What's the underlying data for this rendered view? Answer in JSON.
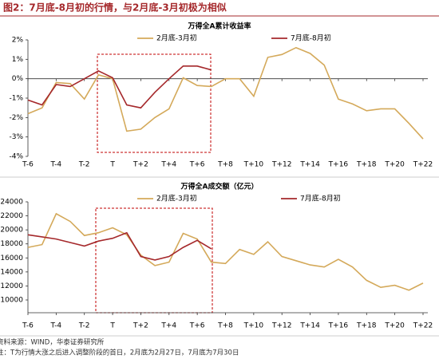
{
  "header": {
    "title": "图2：7月底-8月初的行情，与2月底-3月初极为相似"
  },
  "chart_data": [
    {
      "type": "line",
      "title": "万得全A累计收益率",
      "categories": [
        "T-6",
        null,
        "T-4",
        null,
        "T-2",
        null,
        "T",
        null,
        "T+2",
        null,
        "T+4",
        null,
        "T+6",
        null,
        "T+8",
        null,
        "T+10",
        null,
        "T+12",
        null,
        "T+14",
        null,
        "T+16",
        null,
        "T+18",
        null,
        "T+20",
        null,
        "T+22"
      ],
      "series": [
        {
          "name": "2月底-3月初",
          "color": "#d4a95a",
          "values": [
            -1.8,
            -1.5,
            -0.2,
            -0.25,
            -1.05,
            0.2,
            0.0,
            -2.7,
            -2.6,
            -2.0,
            -1.55,
            0.05,
            -0.35,
            -0.4,
            0.0,
            0.0,
            -0.9,
            1.1,
            1.25,
            1.6,
            1.3,
            0.7,
            -1.05,
            -1.3,
            -1.65,
            -1.55,
            -1.55,
            -2.3,
            -3.1
          ]
        },
        {
          "name": "7月底-8月初",
          "color": "#a5282b",
          "values": [
            -1.1,
            -1.35,
            -0.3,
            -0.4,
            0.0,
            0.4,
            0.05,
            -1.35,
            -1.5,
            -0.7,
            0.0,
            0.65,
            0.65,
            0.45,
            null,
            null,
            null,
            null,
            null,
            null,
            null,
            null,
            null,
            null,
            null,
            null,
            null,
            null,
            null
          ]
        }
      ],
      "ylim": [
        -4,
        2
      ],
      "yticks": [
        {
          "value": 2,
          "label": "2%"
        },
        {
          "value": 1,
          "label": "1%"
        },
        {
          "value": 0,
          "label": "0%"
        },
        {
          "value": -1,
          "label": "-1%"
        },
        {
          "value": -2,
          "label": "-2%"
        },
        {
          "value": -3,
          "label": "-3%"
        },
        {
          "value": -4,
          "label": "-4%"
        }
      ]
    },
    {
      "type": "line",
      "title": "万得全A成交额（亿元）",
      "categories": [
        "T-6",
        null,
        "T-4",
        null,
        "T-2",
        null,
        "T",
        null,
        "T+2",
        null,
        "T+4",
        null,
        "T+6",
        null,
        "T+8",
        null,
        "T+10",
        null,
        "T+12",
        null,
        "T+14",
        null,
        "T+16",
        null,
        "T+18",
        null,
        "T+20",
        null,
        "T+22"
      ],
      "series": [
        {
          "name": "2月底-3月初",
          "color": "#d4a95a",
          "values": [
            17500,
            17900,
            22300,
            21200,
            19200,
            19600,
            20300,
            19300,
            16400,
            14900,
            15400,
            19500,
            18700,
            15400,
            15200,
            17200,
            16500,
            18300,
            16200,
            15600,
            15000,
            14700,
            15800,
            14700,
            12800,
            11800,
            12100,
            11400,
            12400
          ]
        },
        {
          "name": "7月底-8月初",
          "color": "#a5282b",
          "values": [
            19300,
            19000,
            18700,
            18200,
            17700,
            18400,
            18800,
            19600,
            16200,
            15700,
            16200,
            17500,
            18500,
            17300,
            null,
            null,
            null,
            null,
            null,
            null,
            null,
            null,
            null,
            null,
            null,
            null,
            null,
            null,
            null
          ]
        }
      ],
      "ylim": [
        10000,
        24000
      ],
      "yticks": [
        24000,
        22000,
        20000,
        18000,
        16000,
        14000,
        12000,
        10000
      ]
    }
  ],
  "footer": {
    "source": "资料来源：WIND，华泰证券研究所",
    "note": "注：T为行情大涨之后进入调整阶段的首日，2月底为2月27日，7月底为7月30日"
  }
}
